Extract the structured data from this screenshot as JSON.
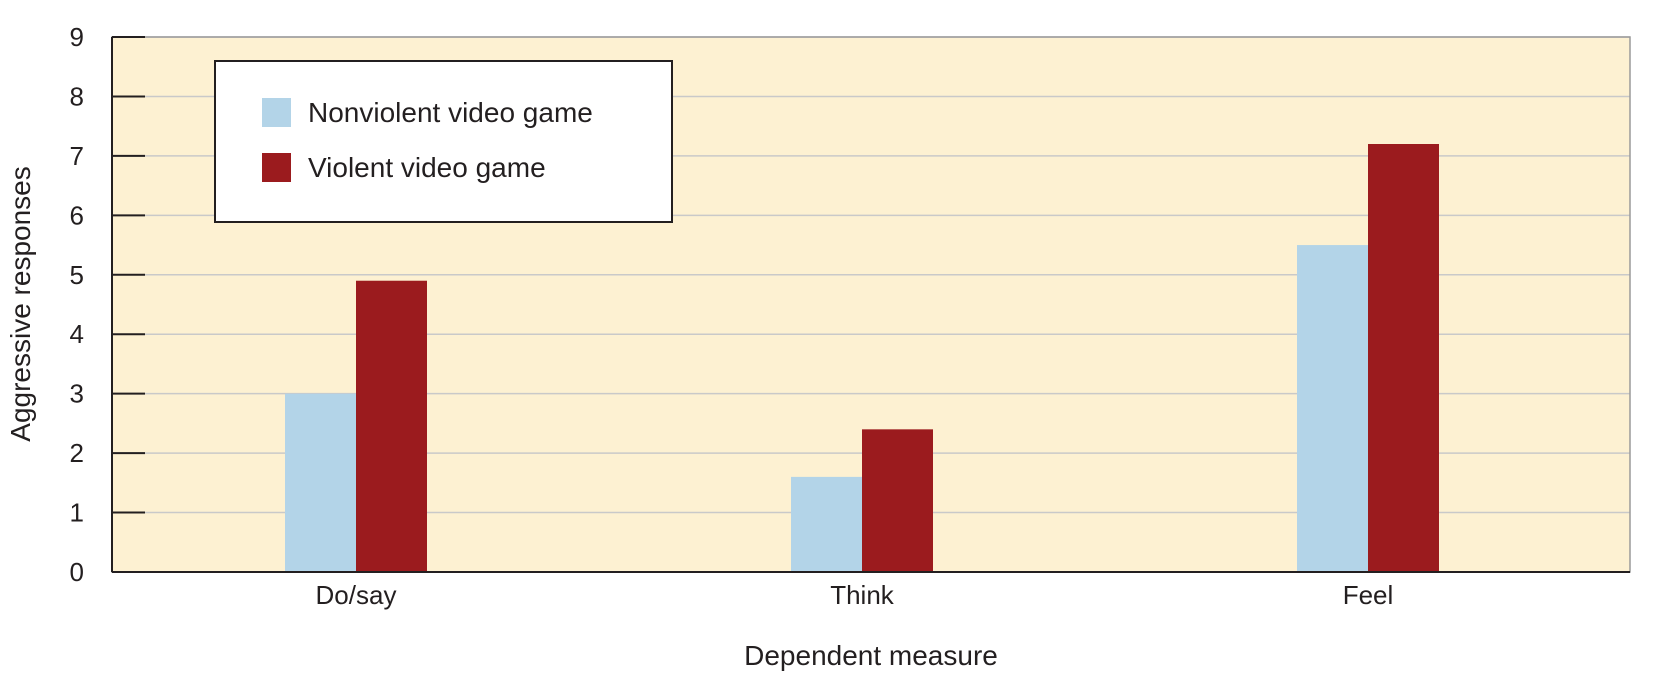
{
  "chart_data": {
    "type": "bar",
    "title": "",
    "xlabel": "Dependent measure",
    "ylabel": "Aggressive responses",
    "categories": [
      "Do/say",
      "Think",
      "Feel"
    ],
    "series": [
      {
        "name": "Nonviolent video game",
        "color": "#b3d4e8",
        "values": [
          3.0,
          1.6,
          5.5
        ]
      },
      {
        "name": "Violent video game",
        "color": "#9b1b1e",
        "values": [
          4.9,
          2.4,
          7.2
        ]
      }
    ],
    "ylim": [
      0,
      9
    ],
    "yticks": [
      "0",
      "1",
      "2",
      "3",
      "4",
      "5",
      "6",
      "7",
      "8",
      "9"
    ],
    "grid": true,
    "legend_position": "top-left",
    "plot_background": "#fdf1d2",
    "grid_color": "#c9c9c9"
  }
}
